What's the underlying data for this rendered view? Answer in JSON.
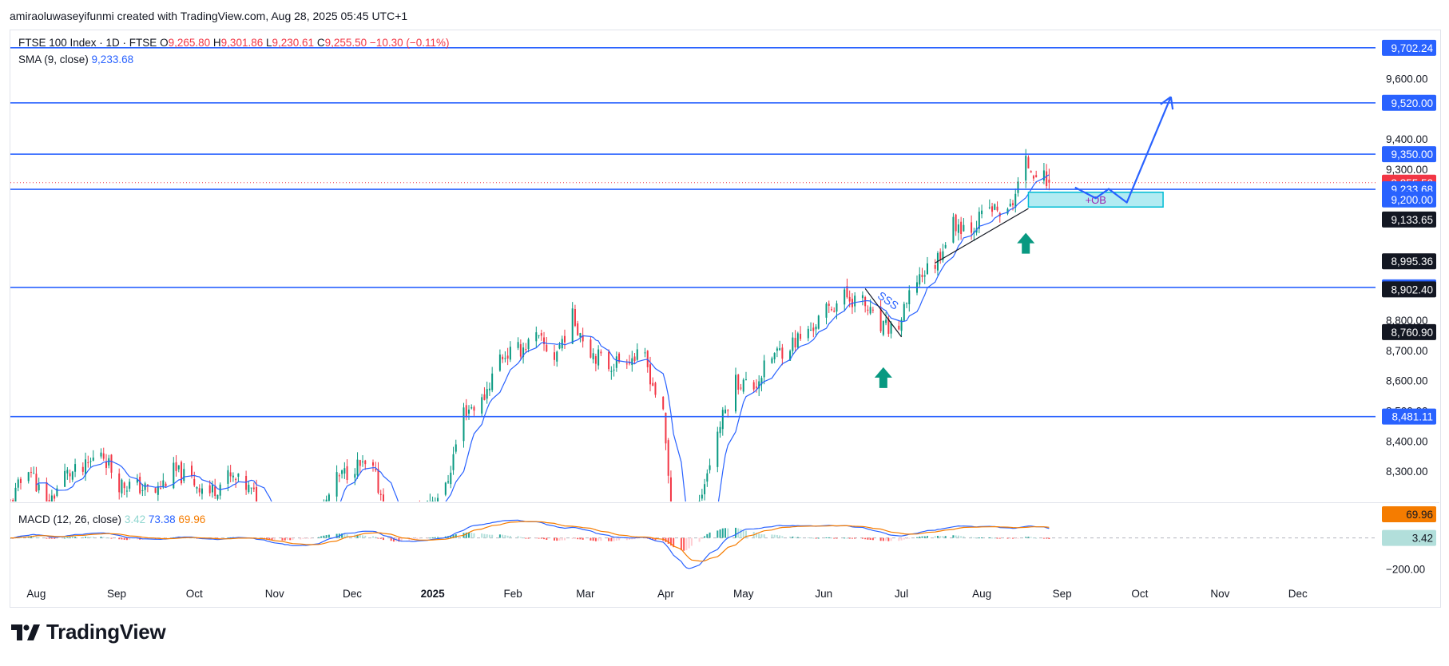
{
  "header": {
    "attribution": "amiraoluwaseyifunmi created with TradingView.com, Aug 28, 2025 05:45 UTC+1"
  },
  "legend": {
    "symbol": "FTSE 100 Index · 1D · FTSE",
    "open_label": "O",
    "open": "9,265.80",
    "high_label": "H",
    "high": "9,301.86",
    "low_label": "L",
    "low": "9,230.61",
    "close_label": "C",
    "close": "9,255.50",
    "change": "−10.30 (−0.11%)",
    "sma_label": "SMA (9, close)",
    "sma_value": "9,233.68",
    "macd_label": "MACD (12, 26, close)",
    "macd_hist": "3.42",
    "macd_line": "73.38",
    "macd_signal": "69.96"
  },
  "brand": {
    "name": "TradingView"
  },
  "colors": {
    "up": "#089981",
    "down": "#f23645",
    "level_line": "#2962ff",
    "sma": "#2962ff",
    "macd_line": "#2962ff",
    "signal_line": "#f57c00",
    "ob_fill": "#b2ebf2",
    "ob_stroke": "#00bcd4"
  },
  "chart_data": {
    "type": "candlestick",
    "symbol": "FTSE 100 Index",
    "interval": "1D",
    "price_axis": {
      "range": [
        8200,
        9760
      ],
      "ticks": [
        8300,
        8400,
        8500,
        8600,
        8700,
        8800,
        9300,
        9400,
        9600
      ],
      "tick_labels": [
        "8,300.00",
        "8,400.00",
        "8,500.00",
        "8,600.00",
        "8,700.00",
        "8,800.00",
        "9,300.00",
        "9,400.00",
        "9,600.00"
      ]
    },
    "time_axis": {
      "range": [
        "2024-07-22",
        "2025-12-31"
      ],
      "ticks": [
        {
          "date": "2024-08-01",
          "label": "Aug"
        },
        {
          "date": "2024-09-01",
          "label": "Sep"
        },
        {
          "date": "2024-10-01",
          "label": "Oct"
        },
        {
          "date": "2024-11-01",
          "label": "Nov"
        },
        {
          "date": "2024-12-01",
          "label": "Dec"
        },
        {
          "date": "2025-01-01",
          "label": "2025",
          "bold": true
        },
        {
          "date": "2025-02-01",
          "label": "Feb"
        },
        {
          "date": "2025-03-01",
          "label": "Mar"
        },
        {
          "date": "2025-04-01",
          "label": "Apr"
        },
        {
          "date": "2025-05-01",
          "label": "May"
        },
        {
          "date": "2025-06-01",
          "label": "Jun"
        },
        {
          "date": "2025-07-01",
          "label": "Jul"
        },
        {
          "date": "2025-08-01",
          "label": "Aug"
        },
        {
          "date": "2025-09-01",
          "label": "Sep"
        },
        {
          "date": "2025-10-01",
          "label": "Oct"
        },
        {
          "date": "2025-11-01",
          "label": "Nov"
        },
        {
          "date": "2025-12-01",
          "label": "Dec"
        }
      ]
    },
    "close_anchors": [
      [
        "2024-07-22",
        8190
      ],
      [
        "2024-07-29",
        8320
      ],
      [
        "2024-08-05",
        8180
      ],
      [
        "2024-08-12",
        8290
      ],
      [
        "2024-08-19",
        8300
      ],
      [
        "2024-08-26",
        8370
      ],
      [
        "2024-09-02",
        8260
      ],
      [
        "2024-09-09",
        8250
      ],
      [
        "2024-09-16",
        8230
      ],
      [
        "2024-09-23",
        8300
      ],
      [
        "2024-09-30",
        8270
      ],
      [
        "2024-10-07",
        8230
      ],
      [
        "2024-10-14",
        8280
      ],
      [
        "2024-10-21",
        8250
      ],
      [
        "2024-10-28",
        8180
      ],
      [
        "2024-11-04",
        8100
      ],
      [
        "2024-11-11",
        8060
      ],
      [
        "2024-11-18",
        8150
      ],
      [
        "2024-11-25",
        8270
      ],
      [
        "2024-12-02",
        8320
      ],
      [
        "2024-12-09",
        8300
      ],
      [
        "2024-12-16",
        8120
      ],
      [
        "2024-12-23",
        8140
      ],
      [
        "2024-12-30",
        8200
      ],
      [
        "2025-01-06",
        8240
      ],
      [
        "2025-01-13",
        8500
      ],
      [
        "2025-01-20",
        8530
      ],
      [
        "2025-01-27",
        8680
      ],
      [
        "2025-02-03",
        8700
      ],
      [
        "2025-02-10",
        8740
      ],
      [
        "2025-02-17",
        8680
      ],
      [
        "2025-02-24",
        8810
      ],
      [
        "2025-03-03",
        8700
      ],
      [
        "2025-03-10",
        8650
      ],
      [
        "2025-03-17",
        8680
      ],
      [
        "2025-03-24",
        8670
      ],
      [
        "2025-03-31",
        8480
      ],
      [
        "2025-04-07",
        7800
      ],
      [
        "2025-04-14",
        8200
      ],
      [
        "2025-04-21",
        8430
      ],
      [
        "2025-04-28",
        8600
      ],
      [
        "2025-05-05",
        8580
      ],
      [
        "2025-05-12",
        8680
      ],
      [
        "2025-05-19",
        8720
      ],
      [
        "2025-05-26",
        8760
      ],
      [
        "2025-06-02",
        8830
      ],
      [
        "2025-06-09",
        8880
      ],
      [
        "2025-06-16",
        8860
      ],
      [
        "2025-06-23",
        8770
      ],
      [
        "2025-06-30",
        8780
      ],
      [
        "2025-07-07",
        8940
      ],
      [
        "2025-07-14",
        8990
      ],
      [
        "2025-07-21",
        9120
      ],
      [
        "2025-07-28",
        9110
      ],
      [
        "2025-08-04",
        9170
      ],
      [
        "2025-08-11",
        9150
      ],
      [
        "2025-08-18",
        9320
      ],
      [
        "2025-08-27",
        9255.5
      ]
    ],
    "last_candle": {
      "date": "2025-08-27",
      "open": 9265.8,
      "high": 9301.86,
      "low": 9230.61,
      "close": 9255.5
    },
    "sma": {
      "period": 9,
      "value": 9233.68
    },
    "levels": [
      {
        "price": 9702.24,
        "label": "9,702.24"
      },
      {
        "price": 9520.0,
        "label": "9,520.00"
      },
      {
        "price": 9350.0,
        "label": "9,350.00"
      },
      {
        "price": 9233.68,
        "label": "9,233.68"
      },
      {
        "price": 8908.82,
        "label": "8,908.82"
      },
      {
        "price": 8481.11,
        "label": "8,481.11"
      }
    ],
    "price_tags": [
      {
        "price": 9255.5,
        "label": "9,255.50",
        "style": "red"
      },
      {
        "price": 9233.68,
        "label": "9,233.68",
        "style": "blue"
      },
      {
        "price": 9200.0,
        "label": "9,200.00",
        "style": "blue"
      },
      {
        "price": 9133.65,
        "label": "9,133.65",
        "style": "dark"
      },
      {
        "price": 8995.36,
        "label": "8,995.36",
        "style": "dark"
      },
      {
        "price": 8902.4,
        "label": "8,902.40",
        "style": "dark"
      },
      {
        "price": 8760.9,
        "label": "8,760.90",
        "style": "dark"
      }
    ],
    "order_block": {
      "label": "+OB",
      "start": "2025-08-19",
      "end": "2025-10-10",
      "top": 9224,
      "bottom": 9175
    },
    "annotations": [
      {
        "type": "text",
        "label": "SSS",
        "date": "2025-06-25",
        "price": 8855
      },
      {
        "type": "arrow-up",
        "date": "2025-06-24",
        "price": 8610
      },
      {
        "type": "arrow-up",
        "date": "2025-08-18",
        "price": 9055
      }
    ],
    "projection": [
      [
        "2025-09-06",
        9240
      ],
      [
        "2025-09-14",
        9204
      ],
      [
        "2025-09-19",
        9235
      ],
      [
        "2025-09-26",
        9190
      ],
      [
        "2025-10-13",
        9540
      ]
    ],
    "macd": {
      "fast": 12,
      "slow": 26,
      "source": "close",
      "histogram": 3.42,
      "macd": 73.38,
      "signal": 69.96,
      "axis_ticks": [
        -200
      ],
      "axis_tick_labels": [
        "−200.00"
      ],
      "tags": [
        {
          "value": 69.96,
          "label": "69.96",
          "style": "orange"
        },
        {
          "value": 3.42,
          "label": "3.42",
          "style": "teal"
        }
      ]
    }
  }
}
